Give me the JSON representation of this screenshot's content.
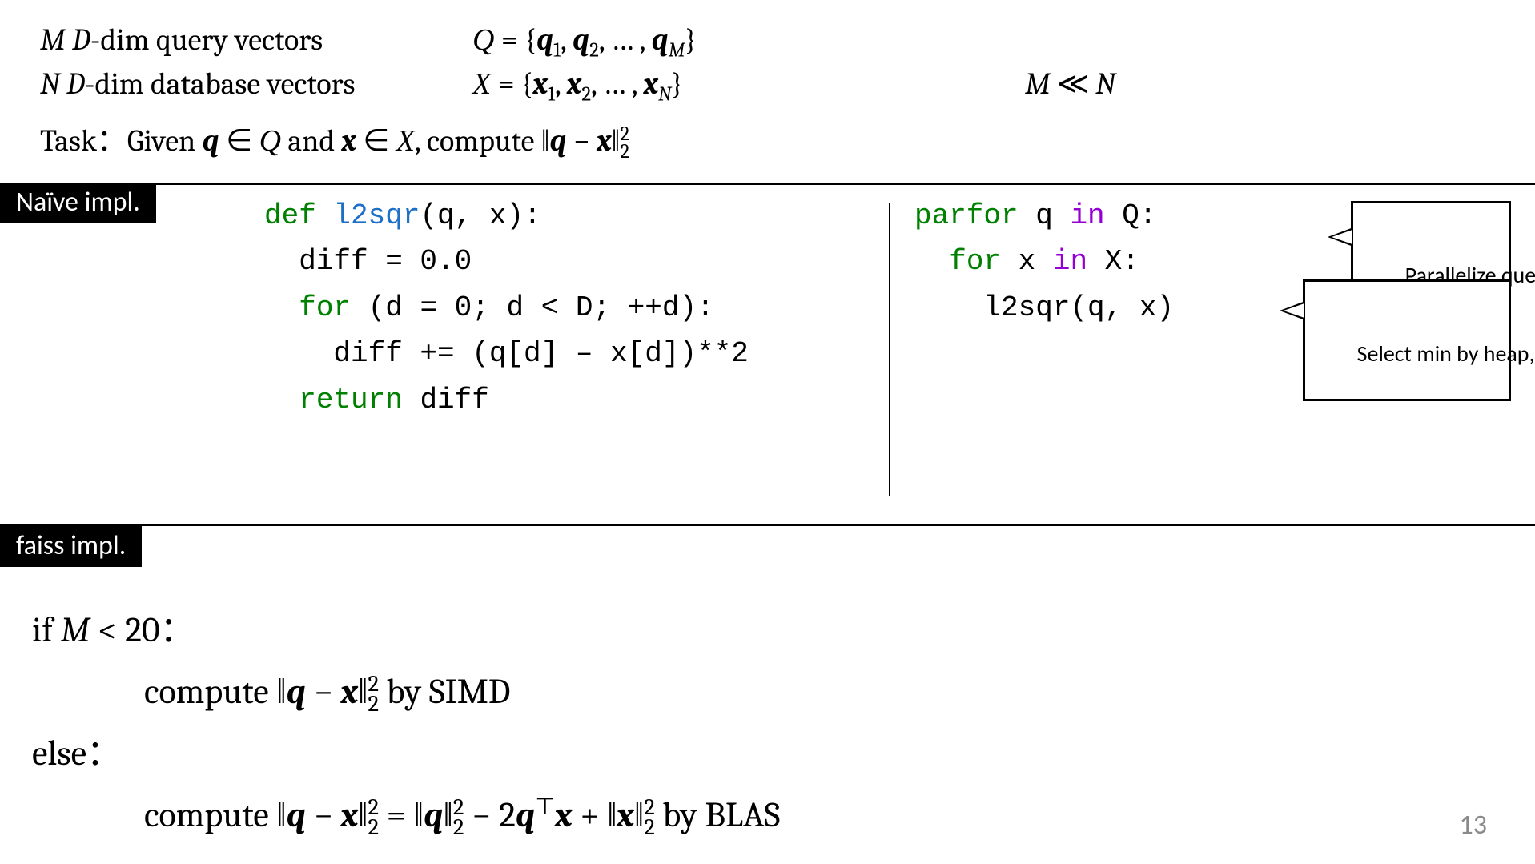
{
  "header": {
    "line1_left_pre": "𝑀 𝐷",
    "line1_left_post": "-dim query vectors",
    "line1_mid": "𝒬 = {𝒒₁, 𝒒₂, … , 𝒒_M}",
    "line2_left_pre": "𝑁 𝐷",
    "line2_left_post": "-dim database vectors",
    "line2_mid": "𝒳 = {𝒙₁, 𝒙₂, … , 𝒙_N}",
    "line2_right": "𝑀 ≪ 𝑁",
    "task": "Task：Given 𝒒 ∈ 𝒬 and 𝒙 ∈ 𝒳, compute ‖𝒒 − 𝒙‖²₂"
  },
  "naive": {
    "label": "Naïve impl.",
    "code_left": {
      "l1_def": "def",
      "l1_fn": "l2sqr",
      "l1_rest": "(q, x):",
      "l2": "  diff = 0.0",
      "l3_for": "for",
      "l3_rest": " (d = 0; d < D; ++d):",
      "l4": "    diff += (q[d] – x[d])**2",
      "l5_ret": "return",
      "l5_rest": " diff"
    },
    "code_right": {
      "l1_parfor": "parfor",
      "l1_q": " q ",
      "l1_in": "in",
      "l1_Q": " Q:",
      "l2_for": "for",
      "l2_x": " x ",
      "l2_in": "in",
      "l2_X": " X:",
      "l3": "    l2sqr(q, x)"
    },
    "callout1": "Parallelize query-side",
    "callout2": "Select min by heap, but omit it now"
  },
  "faiss": {
    "label": "faiss impl.",
    "line1": "if 𝑀 < 20：",
    "line2_pre": "compute ",
    "line2_post": " by SIMD",
    "line3": "else：",
    "line4_pre": "compute ",
    "line4_post": " by BLAS"
  },
  "colors": {
    "kw_green": "#008000",
    "kw_purple": "#9400d3",
    "fn_blue": "#1e6fc7",
    "label_bg": "#000000",
    "label_fg": "#ffffff",
    "page_num": "#8a8a8a",
    "text": "#000000",
    "bg": "#ffffff"
  },
  "page_number": "13"
}
